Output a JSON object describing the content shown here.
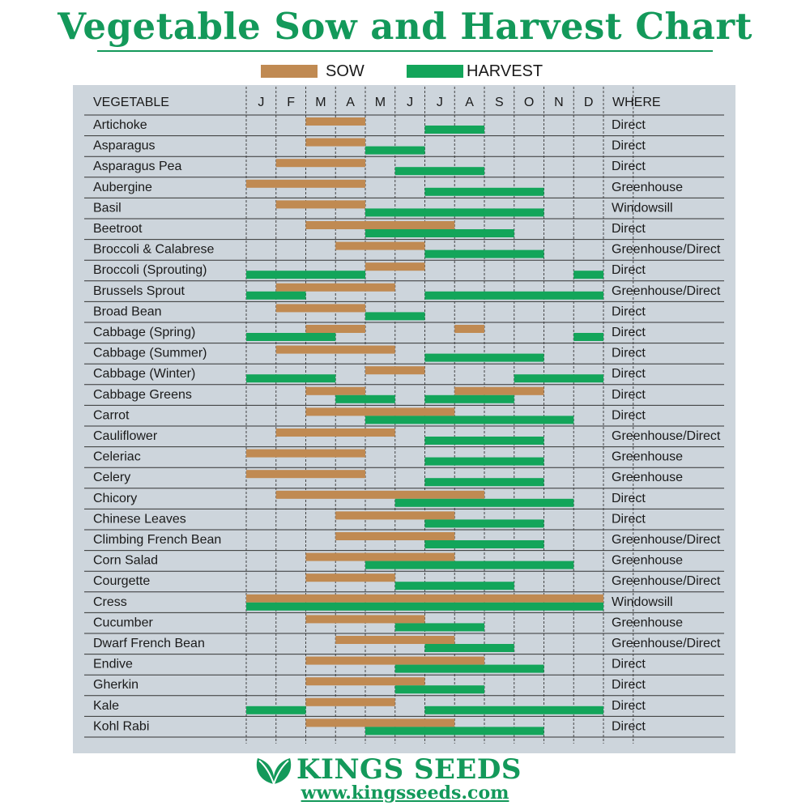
{
  "header": {
    "title": "Vegetable Sow and Harvest Chart"
  },
  "footer": {
    "brand": "KINGS SEEDS",
    "url": "www.kingsseeds.com",
    "logo_icon": "leaf-logo-icon"
  },
  "colors": {
    "sow": "#c08a52",
    "harvest": "#13a55a",
    "brand": "#13995a",
    "panel": "#cdd5dc"
  },
  "chart_data": {
    "type": "gantt",
    "title": "Vegetable Sow and Harvest Chart",
    "legend": [
      {
        "name": "SOW",
        "color": "#c08a52"
      },
      {
        "name": "HARVEST",
        "color": "#13a55a"
      }
    ],
    "legend_position": "top",
    "columns": {
      "vegetable": "VEGETABLE",
      "where": "WHERE"
    },
    "months": [
      "J",
      "F",
      "M",
      "A",
      "M",
      "J",
      "J",
      "A",
      "S",
      "O",
      "N",
      "D"
    ],
    "units": "month index (0 = Jan start, 12 = Dec end)",
    "rows": [
      {
        "name": "Artichoke",
        "where": "Direct",
        "sow": [
          [
            2,
            4
          ]
        ],
        "harvest": [
          [
            6,
            8
          ]
        ]
      },
      {
        "name": "Asparagus",
        "where": "Direct",
        "sow": [
          [
            2,
            4
          ]
        ],
        "harvest": [
          [
            4,
            6
          ]
        ]
      },
      {
        "name": "Asparagus Pea",
        "where": "Direct",
        "sow": [
          [
            1,
            4
          ]
        ],
        "harvest": [
          [
            5,
            8
          ]
        ]
      },
      {
        "name": "Aubergine",
        "where": "Greenhouse",
        "sow": [
          [
            0,
            4
          ]
        ],
        "harvest": [
          [
            6,
            10
          ]
        ]
      },
      {
        "name": "Basil",
        "where": "Windowsill",
        "sow": [
          [
            1,
            4
          ]
        ],
        "harvest": [
          [
            4,
            10
          ]
        ]
      },
      {
        "name": "Beetroot",
        "where": "Direct",
        "sow": [
          [
            2,
            7
          ]
        ],
        "harvest": [
          [
            4,
            9
          ]
        ]
      },
      {
        "name": "Broccoli & Calabrese",
        "where": "Greenhouse/Direct",
        "sow": [
          [
            3,
            6
          ]
        ],
        "harvest": [
          [
            6,
            10
          ]
        ]
      },
      {
        "name": "Broccoli (Sprouting)",
        "where": "Direct",
        "sow": [
          [
            4,
            6
          ]
        ],
        "harvest": [
          [
            0,
            4
          ],
          [
            11,
            12
          ]
        ]
      },
      {
        "name": "Brussels Sprout",
        "where": "Greenhouse/Direct",
        "sow": [
          [
            1,
            5
          ]
        ],
        "harvest": [
          [
            0,
            2
          ],
          [
            6,
            12
          ]
        ]
      },
      {
        "name": "Broad Bean",
        "where": "Direct",
        "sow": [
          [
            1,
            4
          ]
        ],
        "harvest": [
          [
            4,
            6
          ]
        ]
      },
      {
        "name": "Cabbage (Spring)",
        "where": "Direct",
        "sow": [
          [
            2,
            4
          ],
          [
            7,
            8
          ]
        ],
        "harvest": [
          [
            0,
            3
          ],
          [
            11,
            12
          ]
        ]
      },
      {
        "name": "Cabbage (Summer)",
        "where": "Direct",
        "sow": [
          [
            1,
            5
          ]
        ],
        "harvest": [
          [
            6,
            10
          ]
        ]
      },
      {
        "name": "Cabbage (Winter)",
        "where": "Direct",
        "sow": [
          [
            4,
            6
          ]
        ],
        "harvest": [
          [
            0,
            3
          ],
          [
            9,
            12
          ]
        ]
      },
      {
        "name": "Cabbage Greens",
        "where": "Direct",
        "sow": [
          [
            2,
            4
          ],
          [
            7,
            10
          ]
        ],
        "harvest": [
          [
            3,
            5
          ],
          [
            6,
            9
          ]
        ]
      },
      {
        "name": "Carrot",
        "where": "Direct",
        "sow": [
          [
            2,
            7
          ]
        ],
        "harvest": [
          [
            4,
            11
          ]
        ]
      },
      {
        "name": "Cauliflower",
        "where": "Greenhouse/Direct",
        "sow": [
          [
            1,
            5
          ]
        ],
        "harvest": [
          [
            6,
            10
          ]
        ]
      },
      {
        "name": "Celeriac",
        "where": "Greenhouse",
        "sow": [
          [
            0,
            4
          ]
        ],
        "harvest": [
          [
            6,
            10
          ]
        ]
      },
      {
        "name": "Celery",
        "where": "Greenhouse",
        "sow": [
          [
            0,
            4
          ]
        ],
        "harvest": [
          [
            6,
            10
          ]
        ]
      },
      {
        "name": "Chicory",
        "where": "Direct",
        "sow": [
          [
            1,
            8
          ]
        ],
        "harvest": [
          [
            5,
            11
          ]
        ]
      },
      {
        "name": "Chinese Leaves",
        "where": "Direct",
        "sow": [
          [
            3,
            7
          ]
        ],
        "harvest": [
          [
            6,
            10
          ]
        ]
      },
      {
        "name": "Climbing French Bean",
        "where": "Greenhouse/Direct",
        "sow": [
          [
            3,
            7
          ]
        ],
        "harvest": [
          [
            6,
            10
          ]
        ]
      },
      {
        "name": "Corn Salad",
        "where": "Greenhouse",
        "sow": [
          [
            2,
            7
          ]
        ],
        "harvest": [
          [
            4,
            11
          ]
        ]
      },
      {
        "name": "Courgette",
        "where": "Greenhouse/Direct",
        "sow": [
          [
            2,
            5
          ]
        ],
        "harvest": [
          [
            5,
            9
          ]
        ]
      },
      {
        "name": "Cress",
        "where": "Windowsill",
        "sow": [
          [
            0,
            12
          ]
        ],
        "harvest": [
          [
            0,
            12
          ]
        ]
      },
      {
        "name": "Cucumber",
        "where": "Greenhouse",
        "sow": [
          [
            2,
            6
          ]
        ],
        "harvest": [
          [
            5,
            8
          ]
        ]
      },
      {
        "name": "Dwarf French Bean",
        "where": "Greenhouse/Direct",
        "sow": [
          [
            3,
            7
          ]
        ],
        "harvest": [
          [
            6,
            9
          ]
        ]
      },
      {
        "name": "Endive",
        "where": "Direct",
        "sow": [
          [
            2,
            8
          ]
        ],
        "harvest": [
          [
            5,
            10
          ]
        ]
      },
      {
        "name": "Gherkin",
        "where": "Direct",
        "sow": [
          [
            2,
            6
          ]
        ],
        "harvest": [
          [
            5,
            8
          ]
        ]
      },
      {
        "name": "Kale",
        "where": "Direct",
        "sow": [
          [
            2,
            5
          ]
        ],
        "harvest": [
          [
            0,
            2
          ],
          [
            6,
            12
          ]
        ]
      },
      {
        "name": "Kohl Rabi",
        "where": "Direct",
        "sow": [
          [
            2,
            7
          ]
        ],
        "harvest": [
          [
            4,
            10
          ]
        ]
      }
    ]
  }
}
